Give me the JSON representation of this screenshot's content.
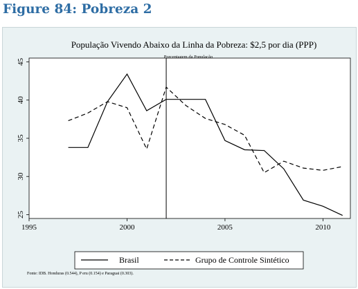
{
  "figure_heading": "Figure 84: Pobreza 2",
  "chart_data": {
    "type": "line",
    "title": "População Vivendo Abaixo da Linha da Pobreza: $2,5 por dia (PPP)",
    "subtitle": "Porcentagem da População",
    "xlim": [
      1995,
      2011.4
    ],
    "ylim": [
      24.5,
      45.5
    ],
    "x_ticks": [
      "1995",
      "2000",
      "2005",
      "2010"
    ],
    "y_ticks": [
      "25",
      "30",
      "35",
      "40",
      "45"
    ],
    "vertical_line_x": 2002,
    "grid": false,
    "legend_position": "bottom",
    "series": [
      {
        "name": "Brasil",
        "style": "solid",
        "color": "#000000",
        "x": [
          1997,
          1998,
          1999,
          2000,
          2001,
          2002,
          2003,
          2004,
          2005,
          2006,
          2007,
          2008,
          2009,
          2010,
          2011
        ],
        "y": [
          33.8,
          33.8,
          39.8,
          43.4,
          38.6,
          40.1,
          40.1,
          40.1,
          34.7,
          33.5,
          33.4,
          31.0,
          26.9,
          26.1,
          24.9
        ]
      },
      {
        "name": "Grupo de Controle Sintético",
        "style": "dashed",
        "color": "#000000",
        "x": [
          1997,
          1998,
          1999,
          2000,
          2001,
          2002,
          2003,
          2004,
          2005,
          2006,
          2007,
          2008,
          2009,
          2010,
          2011
        ],
        "y": [
          37.3,
          38.3,
          39.8,
          39.0,
          33.6,
          41.7,
          39.3,
          37.6,
          36.8,
          35.4,
          30.5,
          32.0,
          31.1,
          30.8,
          31.3
        ]
      }
    ],
    "source_note": "Fonte: IDB.  Honduras (0.544), P eru (0.154) e  Paraguai (0.303)."
  }
}
